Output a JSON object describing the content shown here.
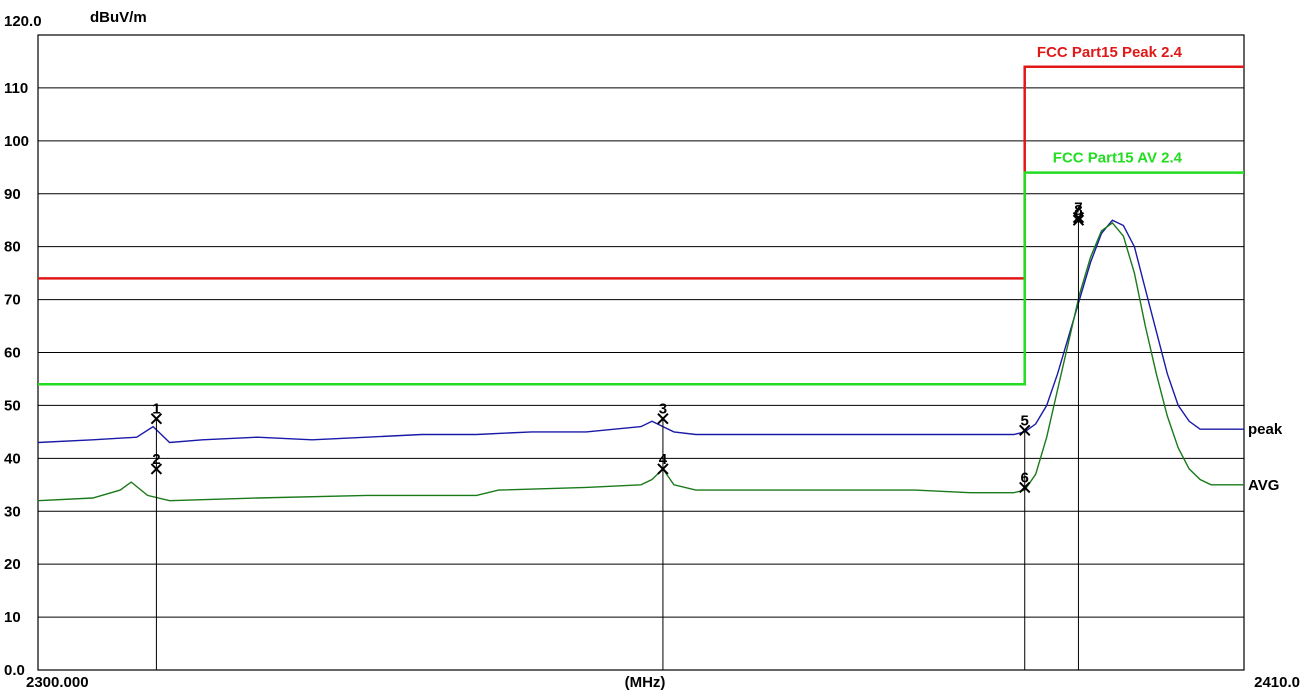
{
  "chart_data": {
    "type": "line",
    "y_unit": "dBuV/m",
    "x_unit": "(MHz)",
    "xlim": [
      2300.0,
      2410.0
    ],
    "ylim": [
      0,
      120
    ],
    "x_start_label": "2300.000",
    "x_end_label": "2410.0",
    "y_top_label": "120.0",
    "y_tick_labels": [
      "0.0",
      "10",
      "20",
      "30",
      "40",
      "50",
      "60",
      "70",
      "80",
      "90",
      "100",
      "110"
    ],
    "y_ticks": [
      0,
      10,
      20,
      30,
      40,
      50,
      60,
      70,
      80,
      90,
      100,
      110
    ],
    "grid": "horizontal",
    "limit_lines": [
      {
        "name": "FCC Part15 Peak 2.4",
        "color": "#e01818",
        "points": [
          [
            2300.0,
            74
          ],
          [
            2390.0,
            74
          ],
          [
            2390.0,
            114
          ],
          [
            2410.0,
            114
          ]
        ]
      },
      {
        "name": "FCC Part15 AV 2.4",
        "color": "#22dd22",
        "points": [
          [
            2300.0,
            54
          ],
          [
            2390.0,
            54
          ],
          [
            2390.0,
            94
          ],
          [
            2410.0,
            94
          ]
        ]
      }
    ],
    "series": [
      {
        "name": "peak",
        "color": "#1a1aa8",
        "x": [
          2300.0,
          2305.0,
          2309.0,
          2310.5,
          2312.0,
          2315.0,
          2320.0,
          2325.0,
          2330.0,
          2335.0,
          2340.0,
          2345.0,
          2350.0,
          2355.0,
          2356.0,
          2357.0,
          2358.0,
          2360.0,
          2365.0,
          2370.0,
          2375.0,
          2380.0,
          2385.0,
          2389.0,
          2390.0,
          2391.0,
          2392.0,
          2393.0,
          2394.0,
          2395.0,
          2396.0,
          2397.0,
          2398.0,
          2399.0,
          2400.0,
          2401.0,
          2402.0,
          2403.0,
          2404.0,
          2405.0,
          2406.0,
          2407.0,
          2408.0,
          2409.0,
          2410.0
        ],
        "y": [
          43,
          43.5,
          44,
          46,
          43,
          43.5,
          44,
          43.5,
          44,
          44.5,
          44.5,
          45,
          45,
          46,
          47,
          46,
          45,
          44.5,
          44.5,
          44.5,
          44.5,
          44.5,
          44.5,
          44.5,
          45,
          46.5,
          50,
          56,
          63,
          70,
          77,
          82.5,
          85,
          84,
          80,
          72,
          64,
          56,
          50,
          47,
          45.5,
          45.5,
          45.5,
          45.5,
          45.5
        ]
      },
      {
        "name": "AVG",
        "color": "#1a7a1a",
        "x": [
          2300.0,
          2305.0,
          2307.5,
          2308.5,
          2310.0,
          2312.0,
          2320.0,
          2330.0,
          2340.0,
          2342.0,
          2350.0,
          2355.0,
          2356.0,
          2357.0,
          2358.0,
          2360.0,
          2370.0,
          2380.0,
          2385.0,
          2389.0,
          2390.0,
          2391.0,
          2392.0,
          2393.0,
          2394.0,
          2395.0,
          2396.0,
          2397.0,
          2398.0,
          2399.0,
          2400.0,
          2401.0,
          2402.0,
          2403.0,
          2404.0,
          2405.0,
          2406.0,
          2407.0,
          2408.0,
          2409.0,
          2410.0
        ],
        "y": [
          32,
          32.5,
          34,
          35.5,
          33,
          32,
          32.5,
          33,
          33,
          34,
          34.5,
          35,
          36,
          38,
          35,
          34,
          34,
          34,
          33.5,
          33.5,
          34,
          37,
          44,
          53,
          62,
          71,
          78,
          83,
          84.5,
          82,
          75,
          65,
          56,
          48,
          42,
          38,
          36,
          35,
          35,
          35,
          35
        ]
      }
    ],
    "markers": [
      {
        "label": "1",
        "x": 2310.8,
        "y": 47.5
      },
      {
        "label": "2",
        "x": 2310.8,
        "y": 38.0
      },
      {
        "label": "3",
        "x": 2357.0,
        "y": 47.5
      },
      {
        "label": "4",
        "x": 2357.0,
        "y": 38.0
      },
      {
        "label": "5",
        "x": 2390.0,
        "y": 45.3
      },
      {
        "label": "6",
        "x": 2390.0,
        "y": 34.5
      },
      {
        "label": "7",
        "x": 2394.9,
        "y": 85.5
      },
      {
        "label": "8",
        "x": 2394.9,
        "y": 85.0
      }
    ]
  }
}
